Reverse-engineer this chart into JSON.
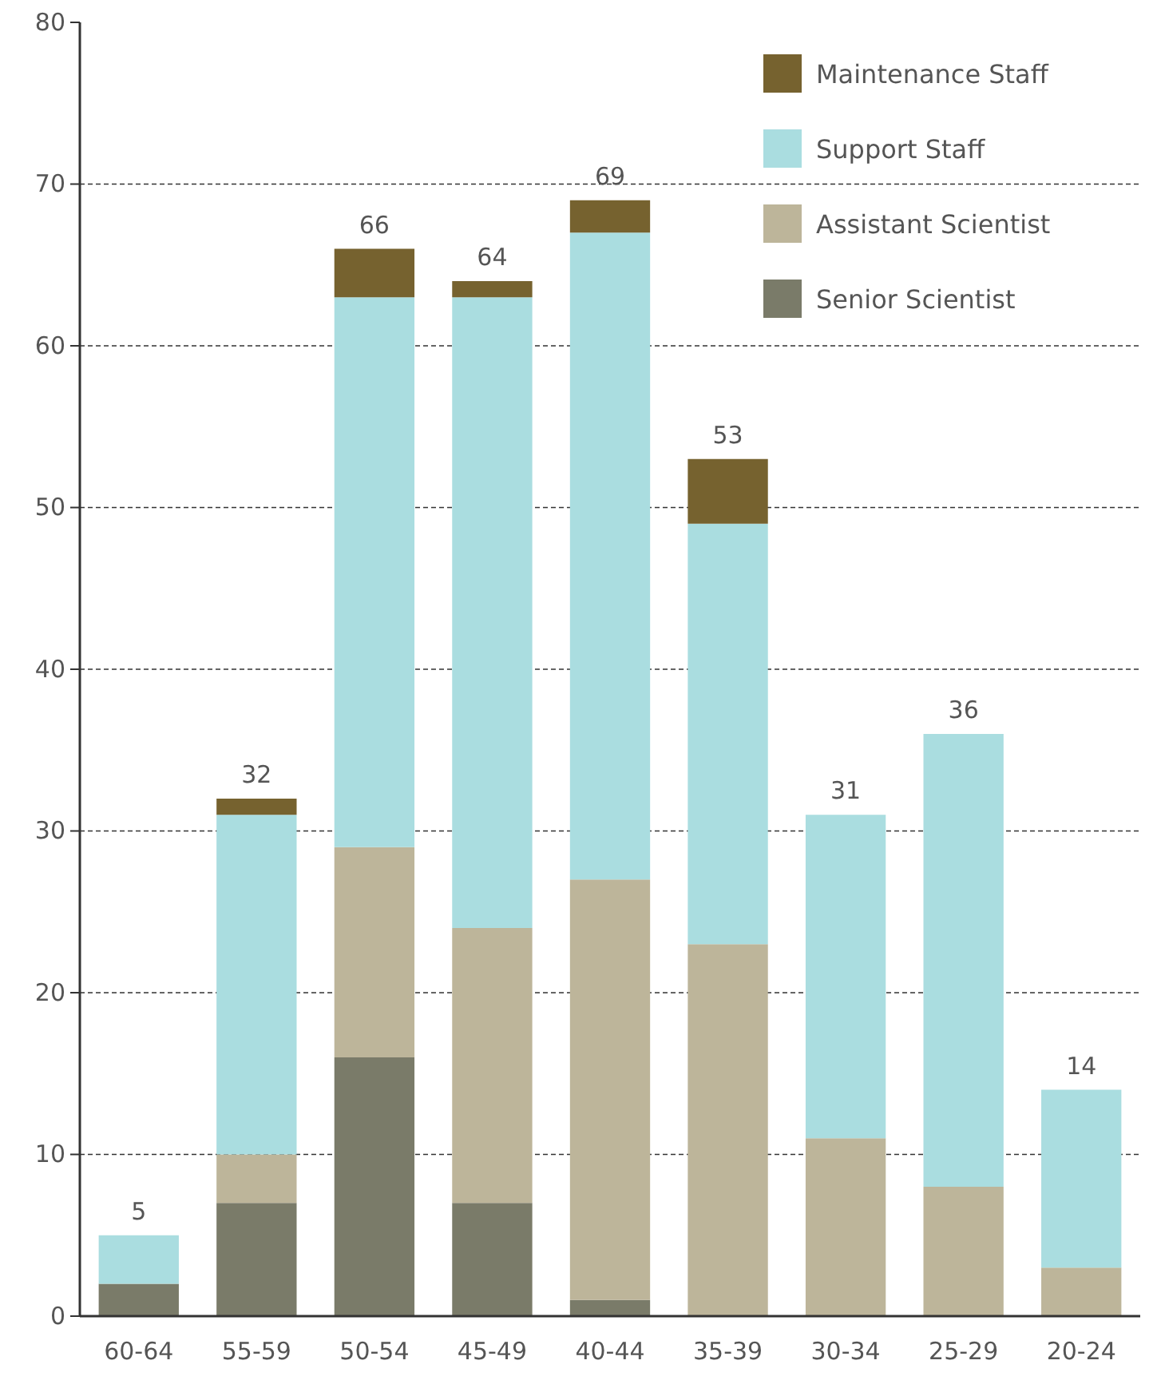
{
  "chart_data": {
    "type": "bar",
    "stacked": true,
    "categories": [
      "60-64",
      "55-59",
      "50-54",
      "45-49",
      "40-44",
      "35-39",
      "30-34",
      "25-29",
      "20-24"
    ],
    "series": [
      {
        "name": "Senior Scientist",
        "color": "#7a7b69",
        "values": [
          2,
          7,
          16,
          7,
          1,
          0,
          0,
          0,
          0
        ]
      },
      {
        "name": "Assistant Scientist",
        "color": "#bdb59a",
        "values": [
          0,
          3,
          13,
          17,
          26,
          23,
          11,
          8,
          3
        ]
      },
      {
        "name": "Support Staff",
        "color": "#aadde0",
        "values": [
          3,
          21,
          34,
          39,
          40,
          26,
          20,
          28,
          11
        ]
      },
      {
        "name": "Maintenance Staff",
        "color": "#76622f",
        "values": [
          0,
          1,
          3,
          1,
          2,
          4,
          0,
          0,
          0
        ]
      }
    ],
    "totals": [
      "5",
      "32",
      "66",
      "64",
      "69",
      "53",
      "31",
      "36",
      "14"
    ],
    "ylim": [
      0,
      80
    ],
    "yticks": [
      0,
      10,
      20,
      30,
      40,
      50,
      60,
      70,
      80
    ],
    "grid": "y",
    "legend": "top right"
  }
}
